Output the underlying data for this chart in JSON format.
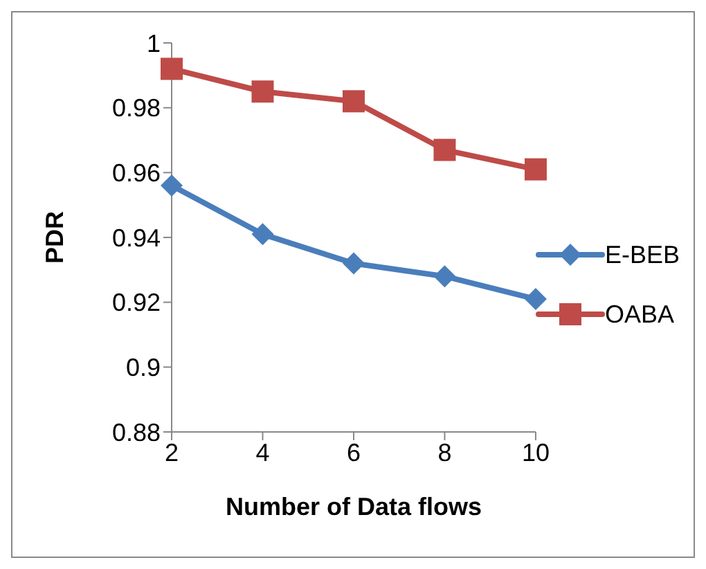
{
  "chart_data": {
    "type": "line",
    "xlabel": "Number of Data flows",
    "ylabel": "PDR",
    "categories": [
      "2",
      "4",
      "6",
      "8",
      "10"
    ],
    "series": [
      {
        "name": "E-BEB",
        "color": "#4a7ebb",
        "marker": "diamond",
        "values": [
          0.956,
          0.941,
          0.932,
          0.928,
          0.921
        ]
      },
      {
        "name": "OABA",
        "color": "#be4b48",
        "marker": "square",
        "values": [
          0.992,
          0.985,
          0.982,
          0.967,
          0.961
        ]
      }
    ],
    "ylim": [
      0.88,
      1
    ],
    "yticks": [
      0.88,
      0.9,
      0.92,
      0.94,
      0.96,
      0.98,
      {
        "value": 1,
        "label": "1"
      }
    ],
    "grid": false,
    "legend": "right"
  }
}
